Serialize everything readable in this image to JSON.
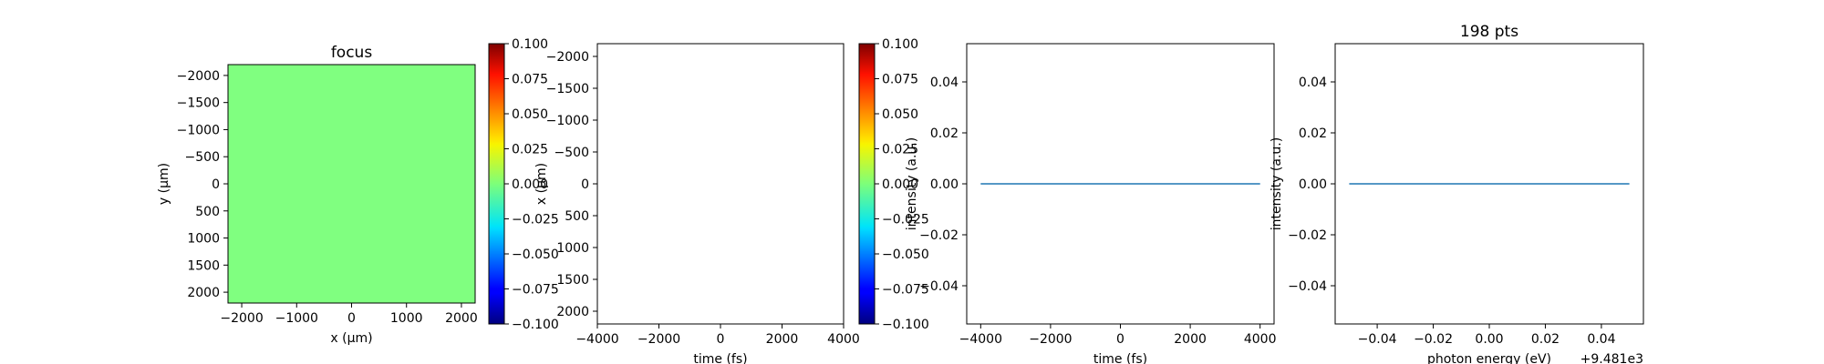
{
  "chart_data": [
    {
      "type": "heatmap",
      "title": "focus",
      "xlabel": "x (μm)",
      "ylabel": "y (μm)",
      "xlim": [
        -2250,
        2250
      ],
      "ylim": [
        2200,
        -2200
      ],
      "xticks": [
        -2000,
        -1000,
        0,
        1000,
        2000
      ],
      "yticks": [
        -2000,
        -1500,
        -1000,
        -500,
        0,
        500,
        1000,
        1500,
        2000
      ],
      "fill_color": "#80ff80",
      "colorbar": {
        "range": [
          -0.1,
          0.1
        ],
        "ticks": [
          "−0.100",
          "−0.075",
          "−0.050",
          "−0.025",
          "0.000",
          "0.025",
          "0.050",
          "0.075",
          "0.100"
        ],
        "label": "x (μm)",
        "colormap": "jet"
      }
    },
    {
      "type": "heatmap",
      "title": "",
      "xlabel": "time (fs)",
      "ylabel": "",
      "xlim": [
        -4000,
        4000
      ],
      "ylim": [
        2200,
        -2200
      ],
      "xticks": [
        -4000,
        -2000,
        0,
        2000,
        4000
      ],
      "yticks": [
        -2000,
        -1500,
        -1000,
        -500,
        0,
        500,
        1000,
        1500,
        2000
      ],
      "fill_color": "#ffffff",
      "colorbar": {
        "range": [
          -0.1,
          0.1
        ],
        "ticks": [
          "−0.100",
          "−0.075",
          "−0.050",
          "−0.025",
          "0.000",
          "0.025",
          "0.050",
          "0.075",
          "0.100"
        ],
        "label": "intensity (a.u.)",
        "colormap": "jet"
      }
    },
    {
      "type": "line",
      "title": "",
      "xlabel": "time (fs)",
      "ylabel": "",
      "xlim": [
        -4400,
        4400
      ],
      "ylim": [
        -0.055,
        0.055
      ],
      "xticks": [
        -4000,
        -2000,
        0,
        2000,
        4000
      ],
      "yticks": [
        "−0.04",
        "−0.02",
        "0.00",
        "0.02",
        "0.04"
      ],
      "series": [
        {
          "x": [
            -4000,
            4000
          ],
          "values": [
            0,
            0
          ],
          "color": "#1f77b4"
        }
      ]
    },
    {
      "type": "line",
      "title": "198 pts",
      "xlabel": "photon energy (eV)",
      "ylabel": "intensity (a.u.)",
      "offset_label": "+9.481e3",
      "xlim": [
        -0.055,
        0.055
      ],
      "ylim": [
        -0.055,
        0.055
      ],
      "xticks": [
        "−0.04",
        "−0.02",
        "0.00",
        "0.02",
        "0.04"
      ],
      "yticks": [
        "−0.04",
        "−0.02",
        "0.00",
        "0.02",
        "0.04"
      ],
      "series": [
        {
          "x": [
            -0.05,
            0.05
          ],
          "values": [
            0,
            0
          ],
          "color": "#1f77b4"
        }
      ]
    }
  ]
}
